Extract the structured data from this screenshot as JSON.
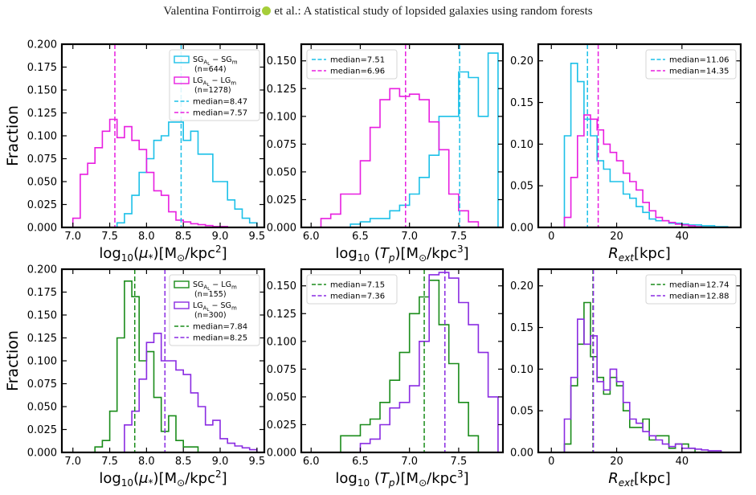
{
  "header": {
    "author": "Valentina Fontirroig",
    "rest": " et al.: A statistical study of lopsided galaxies using random forests"
  },
  "colors": {
    "cyan": "#1cc0e8",
    "magenta": "#e81ee0",
    "green": "#1a8c1a",
    "purple": "#8a2be2"
  },
  "chart_data": [
    {
      "type": "histogram",
      "title": "",
      "xlabel": "log10(μ*)[M⊙/kpc²]",
      "ylabel": "Fraction",
      "xlim": [
        6.85,
        9.6
      ],
      "ylim": [
        0,
        0.2
      ],
      "legend": "top-right",
      "xticks": [
        7.0,
        7.5,
        8.0,
        8.5,
        9.0,
        9.5
      ],
      "xtick_labels": [
        "7.0",
        "7.5",
        "8.0",
        "8.5",
        "9.0",
        "9.5"
      ],
      "yticks": [
        0,
        0.025,
        0.05,
        0.075,
        0.1,
        0.125,
        0.15,
        0.175,
        0.2
      ],
      "ytick_labels": [
        "0.000",
        "0.025",
        "0.050",
        "0.075",
        "0.100",
        "0.125",
        "0.150",
        "0.175",
        "0.200"
      ],
      "series": [
        {
          "name": "SG_AL − SG_m",
          "count_label": "(n=644)",
          "color": "#1cc0e8",
          "edges": [
            7.6,
            7.7,
            7.8,
            7.9,
            8.0,
            8.1,
            8.2,
            8.3,
            8.4,
            8.5,
            8.6,
            8.7,
            8.8,
            8.9,
            9.0,
            9.1,
            9.2,
            9.3,
            9.4,
            9.5
          ],
          "values": [
            0.005,
            0.015,
            0.035,
            0.06,
            0.075,
            0.095,
            0.1,
            0.115,
            0.115,
            0.095,
            0.105,
            0.08,
            0.08,
            0.05,
            0.05,
            0.03,
            0.02,
            0.01,
            0.005
          ]
        },
        {
          "name": "LG_AL − LG_m",
          "count_label": "(n=1278)",
          "color": "#e81ee0",
          "edges": [
            7.0,
            7.1,
            7.2,
            7.3,
            7.4,
            7.5,
            7.6,
            7.7,
            7.8,
            7.9,
            8.0,
            8.1,
            8.2,
            8.3,
            8.4,
            8.5,
            8.6,
            8.7,
            8.8,
            8.9,
            9.0,
            9.1
          ],
          "values": [
            0.01,
            0.058,
            0.07,
            0.087,
            0.105,
            0.118,
            0.098,
            0.11,
            0.095,
            0.085,
            0.06,
            0.04,
            0.035,
            0.017,
            0.008,
            0.006,
            0.004,
            0.003,
            0.002,
            0.001,
            0.001
          ]
        }
      ],
      "medians": [
        {
          "label": "median=8.47",
          "value": 8.47,
          "color": "#1cc0e8"
        },
        {
          "label": "median=7.57",
          "value": 7.57,
          "color": "#e81ee0"
        }
      ]
    },
    {
      "type": "histogram",
      "title": "",
      "xlabel": "log10(Tp)[M⊙/kpc³]",
      "ylabel": "",
      "xlim": [
        5.9,
        7.95
      ],
      "ylim": [
        0,
        0.165
      ],
      "legend": "top-left",
      "xticks": [
        6.0,
        6.5,
        7.0,
        7.5
      ],
      "xtick_labels": [
        "6.0",
        "6.5",
        "7.0",
        "7.5"
      ],
      "yticks": [
        0,
        0.025,
        0.05,
        0.075,
        0.1,
        0.125,
        0.15
      ],
      "ytick_labels": [
        "0.000",
        "0.025",
        "0.050",
        "0.075",
        "0.100",
        "0.125",
        "0.150"
      ],
      "series": [
        {
          "name": "SG_AL − SG_m",
          "color": "#1cc0e8",
          "edges": [
            6.4,
            6.5,
            6.6,
            6.7,
            6.8,
            6.9,
            7.0,
            7.1,
            7.2,
            7.3,
            7.4,
            7.5,
            7.6,
            7.7,
            7.8,
            7.9
          ],
          "values": [
            0.003,
            0.005,
            0.008,
            0.008,
            0.015,
            0.02,
            0.03,
            0.045,
            0.065,
            0.1,
            0.1,
            0.14,
            0.135,
            0.1,
            0.157
          ]
        },
        {
          "name": "LG_AL − LG_m",
          "color": "#e81ee0",
          "edges": [
            6.1,
            6.2,
            6.3,
            6.4,
            6.5,
            6.6,
            6.7,
            6.8,
            6.9,
            7.0,
            7.1,
            7.2,
            7.3,
            7.4,
            7.5,
            7.6,
            7.7
          ],
          "values": [
            0.008,
            0.012,
            0.03,
            0.03,
            0.06,
            0.09,
            0.115,
            0.125,
            0.118,
            0.12,
            0.115,
            0.095,
            0.07,
            0.03,
            0.015,
            0.005
          ]
        }
      ],
      "medians": [
        {
          "label": "median=7.51",
          "value": 7.51,
          "color": "#1cc0e8"
        },
        {
          "label": "median=6.96",
          "value": 6.96,
          "color": "#e81ee0"
        }
      ]
    },
    {
      "type": "histogram",
      "title": "",
      "xlabel": "Rext[kpc]",
      "ylabel": "",
      "xlim": [
        -4,
        58
      ],
      "ylim": [
        0,
        0.22
      ],
      "legend": "top-right",
      "xticks": [
        0,
        20,
        40
      ],
      "xtick_labels": [
        "0",
        "20",
        "40"
      ],
      "yticks": [
        0,
        0.05,
        0.1,
        0.15,
        0.2
      ],
      "ytick_labels": [
        "0.00",
        "0.05",
        "0.10",
        "0.15",
        "0.20"
      ],
      "series": [
        {
          "name": "SG_AL − SG_m",
          "color": "#1cc0e8",
          "edges": [
            4,
            6,
            8,
            10,
            12,
            14,
            16,
            18,
            20,
            22,
            24,
            26,
            28,
            30,
            32,
            34,
            36,
            38,
            40,
            42,
            44,
            46,
            48,
            50,
            52,
            54
          ],
          "values": [
            0.11,
            0.197,
            0.175,
            0.13,
            0.11,
            0.08,
            0.07,
            0.055,
            0.055,
            0.04,
            0.035,
            0.025,
            0.018,
            0.01,
            0.008,
            0.008,
            0.005,
            0.005,
            0.004,
            0.003,
            0.003,
            0.002,
            0.002,
            0.001,
            0.001
          ]
        },
        {
          "name": "LG_AL − LG_m",
          "color": "#e81ee0",
          "edges": [
            4,
            6,
            8,
            10,
            12,
            14,
            16,
            18,
            20,
            22,
            24,
            26,
            28,
            30,
            32,
            34,
            36,
            38,
            40,
            42,
            44,
            46
          ],
          "values": [
            0.012,
            0.06,
            0.11,
            0.135,
            0.13,
            0.117,
            0.1,
            0.09,
            0.08,
            0.065,
            0.055,
            0.045,
            0.03,
            0.02,
            0.012,
            0.008,
            0.006,
            0.004,
            0.003,
            0.002,
            0.001
          ]
        }
      ],
      "medians": [
        {
          "label": "median=11.06",
          "value": 11.06,
          "color": "#1cc0e8"
        },
        {
          "label": "median=14.35",
          "value": 14.35,
          "color": "#e81ee0"
        }
      ]
    },
    {
      "type": "histogram",
      "title": "",
      "xlabel": "log10(μ*)[M⊙/kpc²]",
      "ylabel": "Fraction",
      "xlim": [
        6.85,
        9.6
      ],
      "ylim": [
        0,
        0.2
      ],
      "legend": "top-right",
      "xticks": [
        7.0,
        7.5,
        8.0,
        8.5,
        9.0,
        9.5
      ],
      "xtick_labels": [
        "7.0",
        "7.5",
        "8.0",
        "8.5",
        "9.0",
        "9.5"
      ],
      "yticks": [
        0,
        0.025,
        0.05,
        0.075,
        0.1,
        0.125,
        0.15,
        0.175,
        0.2
      ],
      "ytick_labels": [
        "0.000",
        "0.025",
        "0.050",
        "0.075",
        "0.100",
        "0.125",
        "0.150",
        "0.175",
        "0.200"
      ],
      "series": [
        {
          "name": "SG_AL − LG_m",
          "count_label": "(n=155)",
          "color": "#1a8c1a",
          "edges": [
            7.3,
            7.4,
            7.5,
            7.6,
            7.7,
            7.8,
            7.9,
            8.0,
            8.1,
            8.2,
            8.3,
            8.4,
            8.5,
            8.6,
            8.7
          ],
          "values": [
            0.006,
            0.013,
            0.045,
            0.125,
            0.187,
            0.17,
            0.1,
            0.11,
            0.06,
            0.023,
            0.04,
            0.013,
            0.006,
            0.006
          ]
        },
        {
          "name": "LG_AL − SG_m",
          "count_label": "(n=300)",
          "color": "#8a2be2",
          "edges": [
            7.7,
            7.8,
            7.9,
            8.0,
            8.1,
            8.2,
            8.3,
            8.4,
            8.5,
            8.6,
            8.7,
            8.8,
            8.9,
            9.0,
            9.1,
            9.2,
            9.3,
            9.4,
            9.5
          ],
          "values": [
            0.03,
            0.045,
            0.08,
            0.12,
            0.13,
            0.1,
            0.1,
            0.09,
            0.085,
            0.065,
            0.05,
            0.03,
            0.035,
            0.015,
            0.01,
            0.007,
            0.005,
            0.003
          ]
        }
      ],
      "medians": [
        {
          "label": "median=7.84",
          "value": 7.84,
          "color": "#1a8c1a"
        },
        {
          "label": "median=8.25",
          "value": 8.25,
          "color": "#8a2be2"
        }
      ]
    },
    {
      "type": "histogram",
      "title": "",
      "xlabel": "log10(Tp)[M⊙/kpc³]",
      "ylabel": "",
      "xlim": [
        5.9,
        7.95
      ],
      "ylim": [
        0,
        0.165
      ],
      "legend": "top-left",
      "xticks": [
        6.0,
        6.5,
        7.0,
        7.5
      ],
      "xtick_labels": [
        "6.0",
        "6.5",
        "7.0",
        "7.5"
      ],
      "yticks": [
        0,
        0.025,
        0.05,
        0.075,
        0.1,
        0.125,
        0.15
      ],
      "ytick_labels": [
        "0.000",
        "0.025",
        "0.050",
        "0.075",
        "0.100",
        "0.125",
        "0.150"
      ],
      "series": [
        {
          "name": "SG_AL − LG_m",
          "color": "#1a8c1a",
          "edges": [
            6.3,
            6.4,
            6.5,
            6.6,
            6.7,
            6.8,
            6.9,
            7.0,
            7.1,
            7.2,
            7.3,
            7.4,
            7.5,
            7.6,
            7.7
          ],
          "values": [
            0.015,
            0.015,
            0.025,
            0.03,
            0.045,
            0.065,
            0.09,
            0.125,
            0.14,
            0.155,
            0.115,
            0.08,
            0.045,
            0.015
          ]
        },
        {
          "name": "LG_AL − SG_m",
          "color": "#8a2be2",
          "edges": [
            6.5,
            6.6,
            6.7,
            6.8,
            6.9,
            7.0,
            7.1,
            7.2,
            7.3,
            7.4,
            7.5,
            7.6,
            7.7,
            7.8,
            7.9
          ],
          "values": [
            0.008,
            0.012,
            0.025,
            0.04,
            0.045,
            0.06,
            0.1,
            0.16,
            0.162,
            0.157,
            0.135,
            0.115,
            0.09,
            0.05
          ]
        }
      ],
      "medians": [
        {
          "label": "median=7.15",
          "value": 7.15,
          "color": "#1a8c1a"
        },
        {
          "label": "median=7.36",
          "value": 7.36,
          "color": "#8a2be2"
        }
      ]
    },
    {
      "type": "histogram",
      "title": "",
      "xlabel": "Rext[kpc]",
      "ylabel": "",
      "xlim": [
        -4,
        58
      ],
      "ylim": [
        0,
        0.22
      ],
      "legend": "top-right",
      "xticks": [
        0,
        20,
        40
      ],
      "xtick_labels": [
        "0",
        "20",
        "40"
      ],
      "yticks": [
        0,
        0.05,
        0.1,
        0.15,
        0.2
      ],
      "ytick_labels": [
        "0.00",
        "0.05",
        "0.10",
        "0.15",
        "0.20"
      ],
      "series": [
        {
          "name": "SG_AL − LG_m",
          "color": "#1a8c1a",
          "edges": [
            4,
            6,
            8,
            10,
            12,
            14,
            16,
            18,
            20,
            22,
            24,
            26,
            28,
            30,
            32,
            34,
            36,
            38,
            40,
            42,
            44
          ],
          "values": [
            0.01,
            0.08,
            0.13,
            0.18,
            0.115,
            0.09,
            0.07,
            0.09,
            0.08,
            0.05,
            0.03,
            0.03,
            0.04,
            0.015,
            0.02,
            0.02,
            0.005,
            0.01,
            0.01,
            0.005
          ]
        },
        {
          "name": "LG_AL − SG_m",
          "color": "#8a2be2",
          "edges": [
            4,
            6,
            8,
            10,
            12,
            14,
            16,
            18,
            20,
            22,
            24,
            26,
            28,
            30,
            32,
            34,
            36,
            38,
            40,
            42,
            44,
            46,
            48,
            50,
            52
          ],
          "values": [
            0.04,
            0.09,
            0.16,
            0.13,
            0.14,
            0.085,
            0.075,
            0.1,
            0.085,
            0.06,
            0.04,
            0.035,
            0.025,
            0.02,
            0.015,
            0.01,
            0.007,
            0.01,
            0.005,
            0.005,
            0.004,
            0.003,
            0.002,
            0.002
          ]
        }
      ],
      "medians": [
        {
          "label": "median=12.74",
          "value": 12.74,
          "color": "#1a8c1a"
        },
        {
          "label": "median=12.88",
          "value": 12.88,
          "color": "#8a2be2"
        }
      ]
    }
  ]
}
